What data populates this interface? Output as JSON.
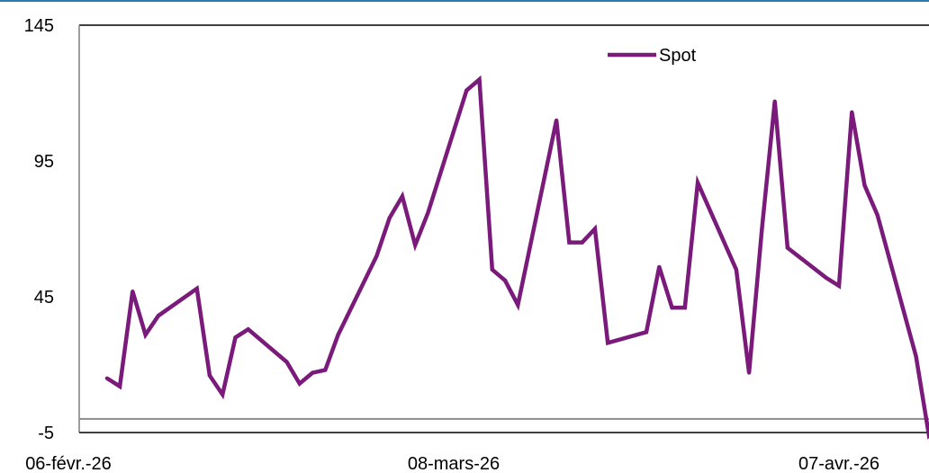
{
  "chart_data": {
    "type": "line",
    "title": "",
    "xlabel": "",
    "ylabel": "",
    "ylim": [
      -5,
      145
    ],
    "yticks": [
      "145",
      "95",
      "45",
      "-5"
    ],
    "xticks": [
      "06-févr.-26",
      "08-mars-26",
      "07-avr.-26"
    ],
    "grid": false,
    "legend": "top-right",
    "baseline_y": 0,
    "series": [
      {
        "name": "Spot",
        "color": "#7a1a7a",
        "x": [
          "09-févr.-26",
          "10-févr.-26",
          "11-févr.-26",
          "12-févr.-26",
          "13-févr.-26",
          "16-févr.-26",
          "17-févr.-26",
          "18-févr.-26",
          "19-févr.-26",
          "20-févr.-26",
          "23-févr.-26",
          "24-févr.-26",
          "25-févr.-26",
          "26-févr.-26",
          "27-févr.-26",
          "02-mars-26",
          "03-mars-26",
          "04-mars-26",
          "05-mars-26",
          "06-mars-26",
          "09-mars-26",
          "10-mars-26",
          "11-mars-26",
          "12-mars-26",
          "13-mars-26",
          "16-mars-26",
          "17-mars-26",
          "18-mars-26",
          "19-mars-26",
          "20-mars-26",
          "23-mars-26",
          "24-mars-26",
          "25-mars-26",
          "26-mars-26",
          "27-mars-26",
          "30-mars-26",
          "31-mars-26",
          "01-avr.-26",
          "02-avr.-26",
          "03-avr.-26",
          "06-avr.-26",
          "07-avr.-26",
          "08-avr.-26",
          "09-avr.-26",
          "10-avr.-26",
          "13-avr.-26",
          "14-avr.-26",
          "15-avr.-26"
        ],
        "values": [
          15,
          12,
          47,
          31,
          38,
          48,
          16,
          9,
          30,
          33,
          21,
          13,
          17,
          18,
          31,
          60,
          74,
          82,
          64,
          76,
          121,
          125,
          55,
          51,
          42,
          110,
          65,
          65,
          70,
          28,
          32,
          56,
          41,
          41,
          87,
          55,
          17,
          70,
          117,
          63,
          52,
          49,
          113,
          86,
          75,
          23,
          -6,
          -1
        ]
      }
    ]
  }
}
